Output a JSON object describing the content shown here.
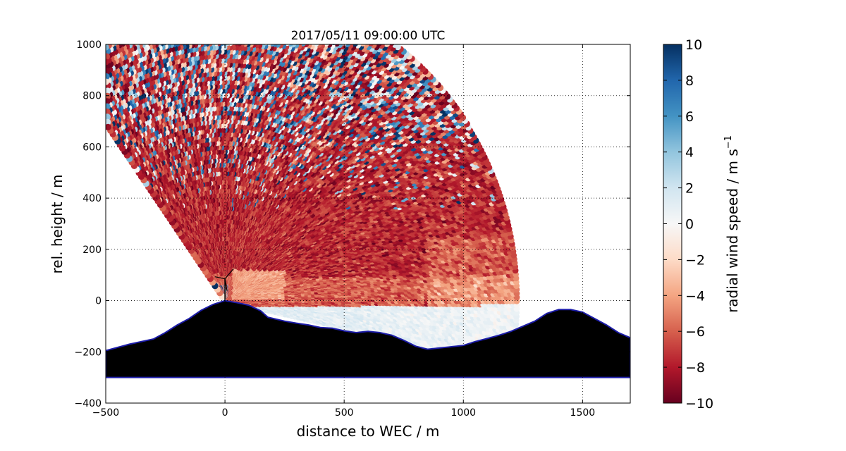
{
  "chart_data": {
    "type": "heatmap",
    "title": "2017/05/11 09:00:00 UTC",
    "xlabel": "distance to WEC / m",
    "ylabel": "rel. height / m",
    "xlim": [
      -500,
      1700
    ],
    "ylim": [
      -400,
      1000
    ],
    "xticks": [
      "−500",
      "0",
      "500",
      "1000",
      "1500"
    ],
    "yticks": [
      "−400",
      "−200",
      "0",
      "200",
      "400",
      "600",
      "800",
      "1000"
    ],
    "grid": true,
    "scan_origin": {
      "x": 0,
      "y": 0
    },
    "scan_angles_deg": [
      -12,
      126
    ],
    "scan_max_range": 1230,
    "terrain": [
      [
        -500,
        -195
      ],
      [
        -400,
        -170
      ],
      [
        -300,
        -150
      ],
      [
        -250,
        -125
      ],
      [
        -200,
        -95
      ],
      [
        -150,
        -70
      ],
      [
        -100,
        -38
      ],
      [
        -50,
        -15
      ],
      [
        0,
        0
      ],
      [
        50,
        -8
      ],
      [
        100,
        -18
      ],
      [
        150,
        -40
      ],
      [
        180,
        -65
      ],
      [
        250,
        -80
      ],
      [
        300,
        -88
      ],
      [
        350,
        -95
      ],
      [
        400,
        -105
      ],
      [
        450,
        -108
      ],
      [
        500,
        -118
      ],
      [
        550,
        -125
      ],
      [
        600,
        -120
      ],
      [
        650,
        -125
      ],
      [
        700,
        -135
      ],
      [
        750,
        -155
      ],
      [
        800,
        -178
      ],
      [
        850,
        -190
      ],
      [
        900,
        -185
      ],
      [
        950,
        -180
      ],
      [
        1000,
        -175
      ],
      [
        1050,
        -160
      ],
      [
        1100,
        -148
      ],
      [
        1150,
        -135
      ],
      [
        1200,
        -120
      ],
      [
        1250,
        -100
      ],
      [
        1300,
        -80
      ],
      [
        1350,
        -50
      ],
      [
        1400,
        -35
      ],
      [
        1450,
        -35
      ],
      [
        1500,
        -45
      ],
      [
        1550,
        -70
      ],
      [
        1600,
        -95
      ],
      [
        1650,
        -125
      ],
      [
        1700,
        -145
      ]
    ],
    "terrain_base": -300,
    "colorbar": {
      "label": "radial wind speed / m s",
      "label_superscript": "−1",
      "range": [
        -10,
        10
      ],
      "ticks": [
        "10",
        "8",
        "6",
        "4",
        "2",
        "0",
        "−2",
        "−4",
        "−6",
        "−8",
        "−10"
      ],
      "colormap": "RdBu",
      "stops": [
        "#67001f",
        "#b2182b",
        "#d6604d",
        "#f4a582",
        "#fddbc7",
        "#f7f7f7",
        "#d1e5f0",
        "#92c5de",
        "#4393c3",
        "#2166ac",
        "#053061"
      ]
    }
  }
}
